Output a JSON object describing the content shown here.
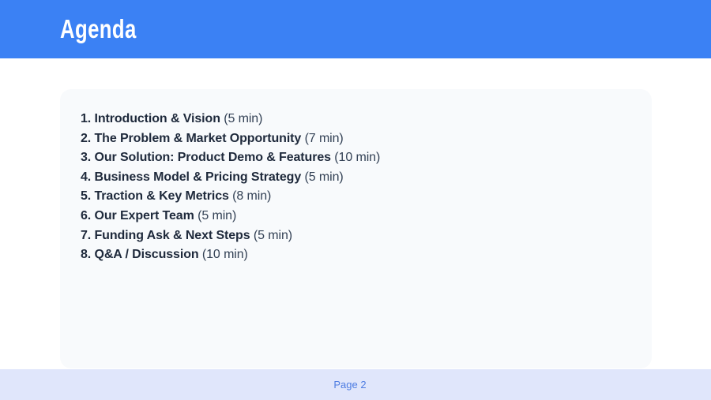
{
  "slide": {
    "title": "Agenda",
    "page_label": "Page 2"
  },
  "agenda": {
    "items": [
      {
        "label": "1. Introduction & Vision",
        "duration": "(5 min)"
      },
      {
        "label": "2. The Problem & Market Opportunity",
        "duration": "(7 min)"
      },
      {
        "label": "3. Our Solution: Product Demo & Features",
        "duration": "(10 min)"
      },
      {
        "label": "4. Business Model & Pricing Strategy",
        "duration": "(5 min)"
      },
      {
        "label": "5. Traction & Key Metrics",
        "duration": "(8 min)"
      },
      {
        "label": "6. Our Expert Team",
        "duration": "(5 min)"
      },
      {
        "label": "7. Funding Ask & Next Steps",
        "duration": "(5 min)"
      },
      {
        "label": "8. Q&A / Discussion",
        "duration": "(10 min)"
      }
    ]
  },
  "colors": {
    "header_bg": "#3b81f4",
    "header_text": "#ffffff",
    "card_bg": "#f8fafc",
    "item_text": "#1e293b",
    "duration_text": "#334155",
    "footer_bg": "#e0e6fb",
    "footer_text": "#4d7ce2"
  }
}
